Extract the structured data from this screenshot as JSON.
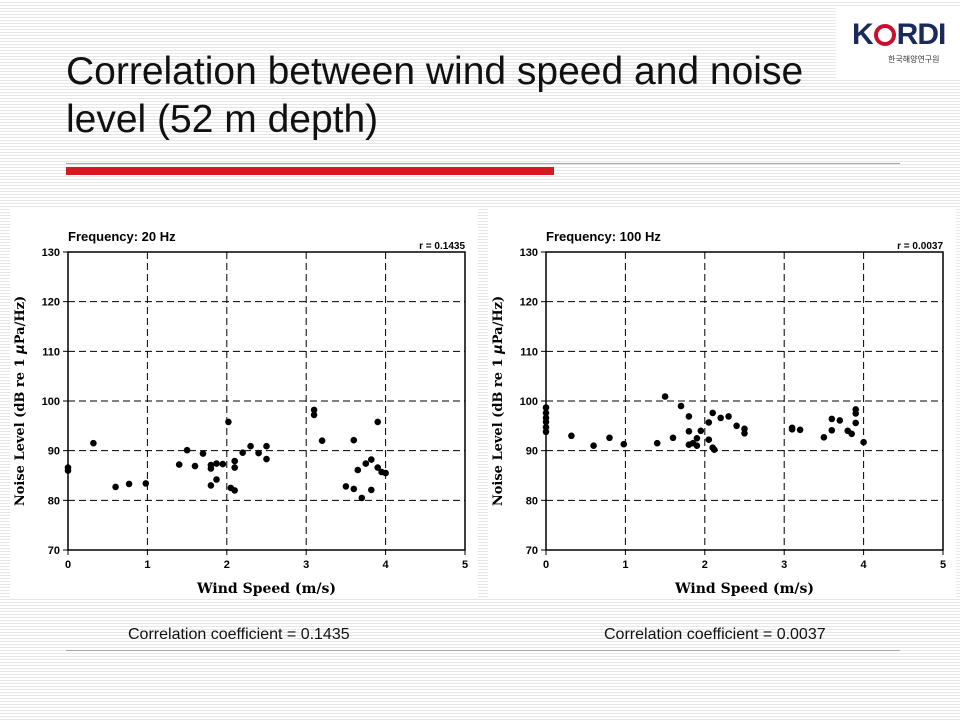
{
  "title": "Correlation between wind speed and noise level (52 m depth)",
  "logo": {
    "word_left": "K",
    "word_right": "RDI",
    "subtitle": "한국해양연구원"
  },
  "captions": [
    "Correlation coefficient = 0.1435",
    "Correlation coefficient = 0.0037"
  ],
  "colors": {
    "accent_red": "#d71920",
    "rule_gray": "#a6a6a6",
    "marker": "#000000"
  },
  "chart_data": [
    {
      "type": "scatter",
      "title": "Frequency: 20 Hz",
      "annotation": "r = 0.1435",
      "xlabel": "Wind Speed (m/s)",
      "ylabel_parts": [
        "Noise Level (dB re 1 ",
        "μ",
        "Pa/Hz)"
      ],
      "xlim": [
        0,
        5
      ],
      "ylim": [
        70,
        130
      ],
      "xticks": [
        0,
        1,
        2,
        3,
        4,
        5
      ],
      "yticks": [
        70,
        80,
        90,
        100,
        110,
        120,
        130
      ],
      "grid": true,
      "points": [
        [
          0.0,
          86.0
        ],
        [
          0.0,
          86.6
        ],
        [
          0.32,
          91.5
        ],
        [
          0.6,
          82.7
        ],
        [
          0.77,
          83.3
        ],
        [
          0.98,
          83.4
        ],
        [
          1.4,
          87.2
        ],
        [
          1.5,
          90.1
        ],
        [
          1.6,
          86.9
        ],
        [
          1.7,
          89.4
        ],
        [
          1.8,
          86.4
        ],
        [
          1.8,
          87.1
        ],
        [
          1.8,
          83.0
        ],
        [
          1.87,
          87.4
        ],
        [
          1.87,
          84.2
        ],
        [
          1.95,
          87.3
        ],
        [
          2.02,
          95.8
        ],
        [
          2.05,
          82.5
        ],
        [
          2.1,
          86.6
        ],
        [
          2.1,
          87.9
        ],
        [
          2.1,
          82.0
        ],
        [
          2.2,
          89.6
        ],
        [
          2.3,
          90.9
        ],
        [
          2.4,
          89.5
        ],
        [
          2.5,
          90.9
        ],
        [
          2.5,
          88.3
        ],
        [
          3.1,
          98.2
        ],
        [
          3.1,
          97.2
        ],
        [
          3.2,
          92.0
        ],
        [
          3.5,
          82.8
        ],
        [
          3.6,
          92.1
        ],
        [
          3.6,
          82.3
        ],
        [
          3.65,
          86.1
        ],
        [
          3.7,
          80.5
        ],
        [
          3.75,
          87.4
        ],
        [
          3.82,
          88.2
        ],
        [
          3.82,
          82.1
        ],
        [
          3.9,
          95.8
        ],
        [
          3.9,
          86.6
        ],
        [
          3.95,
          85.7
        ],
        [
          4.0,
          85.5
        ]
      ]
    },
    {
      "type": "scatter",
      "title": "Frequency: 100 Hz",
      "annotation": "r = 0.0037",
      "xlabel": "Wind Speed (m/s)",
      "ylabel_parts": [
        "Noise Level (dB re 1 ",
        "μ",
        "Pa/Hz)"
      ],
      "xlim": [
        0,
        5
      ],
      "ylim": [
        70,
        130
      ],
      "xticks": [
        0,
        1,
        2,
        3,
        4,
        5
      ],
      "yticks": [
        70,
        80,
        90,
        100,
        110,
        120,
        130
      ],
      "grid": true,
      "points": [
        [
          0.0,
          98.7
        ],
        [
          0.0,
          97.6
        ],
        [
          0.0,
          96.6
        ],
        [
          0.0,
          95.8
        ],
        [
          0.0,
          94.7
        ],
        [
          0.0,
          93.8
        ],
        [
          0.32,
          93.0
        ],
        [
          0.6,
          91.0
        ],
        [
          0.8,
          92.6
        ],
        [
          0.98,
          91.3
        ],
        [
          1.4,
          91.5
        ],
        [
          1.5,
          100.9
        ],
        [
          1.6,
          92.6
        ],
        [
          1.7,
          99.0
        ],
        [
          1.8,
          96.9
        ],
        [
          1.8,
          93.9
        ],
        [
          1.8,
          91.2
        ],
        [
          1.85,
          91.5
        ],
        [
          1.9,
          92.5
        ],
        [
          1.9,
          91.0
        ],
        [
          1.95,
          94.0
        ],
        [
          2.05,
          95.7
        ],
        [
          2.05,
          92.2
        ],
        [
          2.1,
          97.6
        ],
        [
          2.1,
          90.6
        ],
        [
          2.12,
          90.2
        ],
        [
          2.2,
          96.6
        ],
        [
          2.3,
          96.9
        ],
        [
          2.4,
          95.0
        ],
        [
          2.5,
          94.4
        ],
        [
          2.5,
          93.5
        ],
        [
          3.1,
          94.6
        ],
        [
          3.1,
          94.3
        ],
        [
          3.2,
          94.2
        ],
        [
          3.5,
          92.7
        ],
        [
          3.6,
          96.4
        ],
        [
          3.6,
          94.1
        ],
        [
          3.7,
          96.1
        ],
        [
          3.8,
          94.0
        ],
        [
          3.85,
          93.4
        ],
        [
          3.9,
          98.3
        ],
        [
          3.9,
          97.5
        ],
        [
          3.9,
          95.6
        ],
        [
          4.0,
          91.7
        ]
      ]
    }
  ]
}
